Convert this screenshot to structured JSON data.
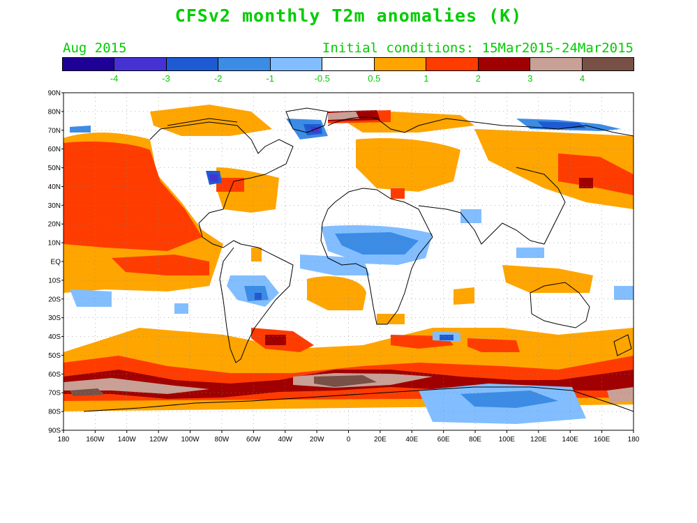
{
  "title": "CFSv2 monthly T2m anomalies (K)",
  "month": "Aug 2015",
  "initial_conditions": "Initial conditions: 15Mar2015-24Mar2015",
  "legend": {
    "colors": [
      "#1e0096",
      "#4632d2",
      "#1e5ad2",
      "#3c8ce6",
      "#82beff",
      "#ffffff",
      "#ffa500",
      "#ff3c00",
      "#a00000",
      "#c8a096",
      "#785046"
    ],
    "labels": [
      "-4",
      "-3",
      "-2",
      "-1",
      "-0.5",
      "0.5",
      "1",
      "2",
      "3",
      "4"
    ]
  },
  "axes": {
    "lat_labels": [
      "90N",
      "80N",
      "70N",
      "60N",
      "50N",
      "40N",
      "30N",
      "20N",
      "10N",
      "EQ",
      "10S",
      "20S",
      "30S",
      "40S",
      "50S",
      "60S",
      "70S",
      "80S",
      "90S"
    ],
    "lon_labels": [
      "180",
      "160W",
      "140W",
      "120W",
      "100W",
      "80W",
      "60W",
      "40W",
      "20W",
      "0",
      "20E",
      "40E",
      "60E",
      "80E",
      "100E",
      "120E",
      "140E",
      "160E",
      "180"
    ]
  }
}
